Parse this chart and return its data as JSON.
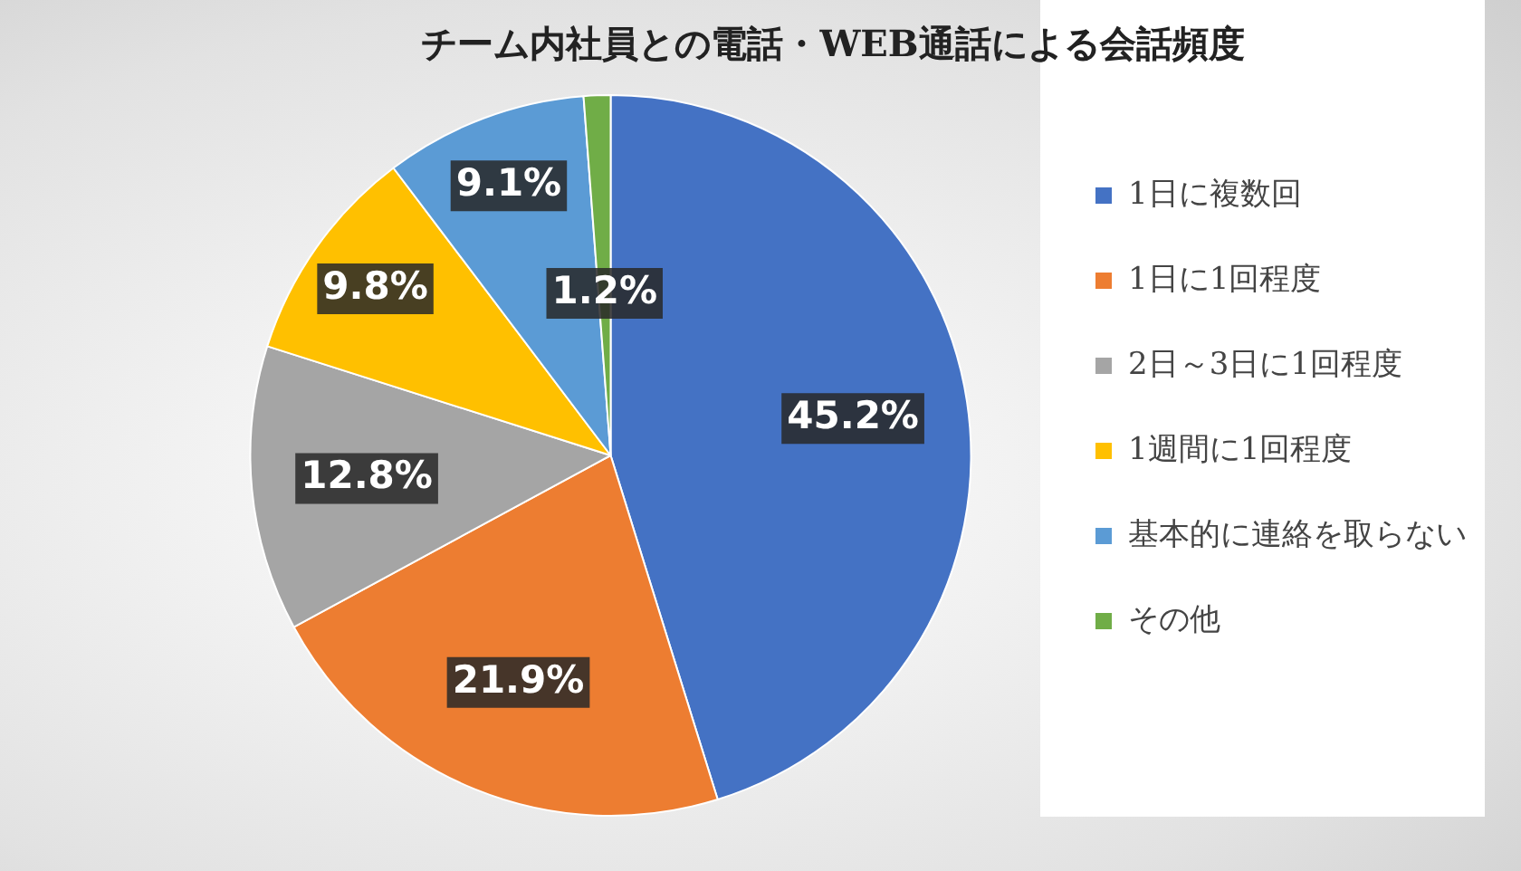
{
  "chart_data": {
    "type": "pie",
    "title": "チーム内社員との電話・WEB通話による会話頻度",
    "categories": [
      "1日に複数回",
      "1日に1回程度",
      "2日～3日に1回程度",
      "1週間に1回程度",
      "基本的に連絡を取らない",
      "その他"
    ],
    "values": [
      45.2,
      21.9,
      12.8,
      9.8,
      9.1,
      1.2
    ],
    "colors": [
      "#4472c4",
      "#ed7d31",
      "#a5a5a5",
      "#ffc000",
      "#5b9bd5",
      "#70ad47"
    ],
    "value_labels": [
      "45.2%",
      "21.9%",
      "12.8%",
      "9.8%",
      "9.1%",
      "1.2%"
    ],
    "legend": "right"
  }
}
